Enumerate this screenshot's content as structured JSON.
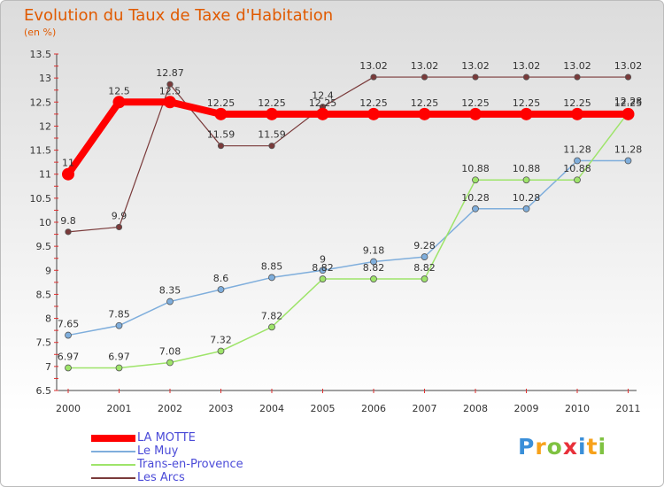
{
  "title": "Evolution du Taux de Taxe d'Habitation",
  "subtitle": "(en %)",
  "chart_data": {
    "type": "line",
    "title": "Evolution du Taux de Taxe d'Habitation",
    "ylabel": "(en %)",
    "xlabel": "",
    "x": [
      "2000",
      "2001",
      "2002",
      "2003",
      "2004",
      "2005",
      "2006",
      "2007",
      "2008",
      "2009",
      "2010",
      "2011"
    ],
    "ylim": [
      6.5,
      13.5
    ],
    "yticks": [
      "6.5",
      "7",
      "7.5",
      "8",
      "8.5",
      "9",
      "9.5",
      "10",
      "10.5",
      "11",
      "11.5",
      "12",
      "12.5",
      "13",
      "13.5"
    ],
    "grid": false,
    "legend_position": "bottom-left",
    "series": [
      {
        "name": "LA MOTTE",
        "color": "#ff0000",
        "values": [
          11,
          12.5,
          12.5,
          12.25,
          12.25,
          12.25,
          12.25,
          12.25,
          12.25,
          12.25,
          12.25,
          12.25
        ],
        "labels": [
          "11",
          "12.5",
          "12.5",
          "12.25",
          "12.25",
          "12.25",
          "12.25",
          "12.25",
          "12.25",
          "12.25",
          "12.25",
          "12.25"
        ]
      },
      {
        "name": "Le Muy",
        "color": "#7faedc",
        "values": [
          7.65,
          7.85,
          8.35,
          8.6,
          8.85,
          9,
          9.18,
          9.28,
          10.28,
          10.28,
          11.28,
          11.28
        ],
        "labels": [
          "7.65",
          "7.85",
          "8.35",
          "8.6",
          "8.85",
          "9",
          "9.18",
          "9.28",
          "10.28",
          "10.28",
          "11.28",
          "11.28"
        ]
      },
      {
        "name": "Trans-en-Provence",
        "color": "#9ee46a",
        "values": [
          6.97,
          6.97,
          7.08,
          7.32,
          7.82,
          8.82,
          8.82,
          8.82,
          10.88,
          10.88,
          10.88,
          12.28
        ],
        "labels": [
          "6.97",
          "6.97",
          "7.08",
          "7.32",
          "7.82",
          "8.82",
          "8.82",
          "8.82",
          "10.88",
          "10.88",
          "10.88",
          "12.28"
        ]
      },
      {
        "name": "Les Arcs",
        "color": "#7a3a3a",
        "values": [
          9.8,
          9.9,
          12.87,
          11.59,
          11.59,
          12.4,
          13.02,
          13.02,
          13.02,
          13.02,
          13.02,
          13.02
        ],
        "labels": [
          "9.8",
          "9.9",
          "12.87",
          "11.59",
          "11.59",
          "12.4",
          "13.02",
          "13.02",
          "13.02",
          "13.02",
          "13.02",
          "13.02"
        ]
      }
    ]
  },
  "logo": {
    "letters": [
      "P",
      "r",
      "o",
      "x",
      "i",
      "t",
      "i"
    ],
    "colors": [
      "#3a8fd9",
      "#f7a21b",
      "#7fc241",
      "#e8303a",
      "#3a8fd9",
      "#f7a21b",
      "#7fc241"
    ]
  }
}
